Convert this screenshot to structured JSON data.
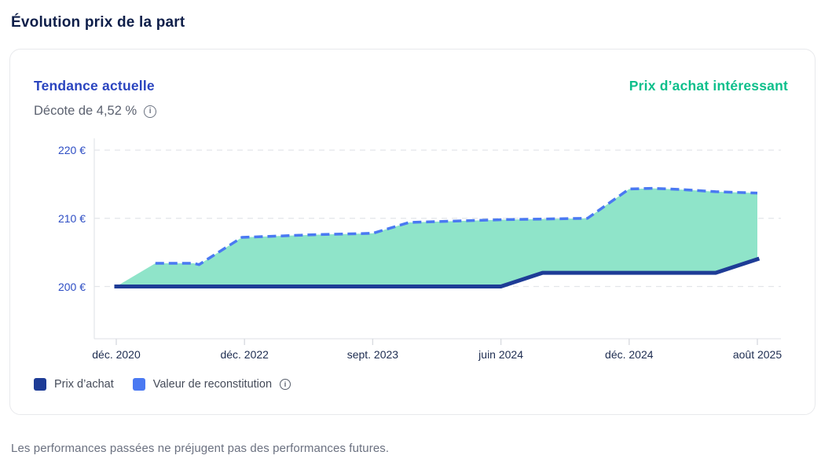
{
  "page": {
    "title": "Évolution prix de la part",
    "disclaimer": "Les performances passées ne préjugent pas des performances futures."
  },
  "card": {
    "title": "Tendance actuelle",
    "status": "Prix d’achat intéressant",
    "subtitle": "Décote de 4,52 %",
    "info_icon": "i",
    "colors": {
      "title": "#2a44bf",
      "status": "#0cbf8b"
    }
  },
  "legend": {
    "items": [
      {
        "label": "Prix d’achat",
        "color": "#1e3c96"
      },
      {
        "label": "Valeur de reconstitution",
        "color": "#4a79f2",
        "info_icon": "i"
      }
    ]
  },
  "chart_data": {
    "type": "area",
    "title": "Évolution prix de la part",
    "unit": "€",
    "grid": true,
    "legend_position": "bottom",
    "ylim": [
      195,
      222
    ],
    "y_axis": {
      "ticks": [
        {
          "label": "200 €",
          "value": 200
        },
        {
          "label": "210 €",
          "value": 210
        },
        {
          "label": "220 €",
          "value": 220
        }
      ]
    },
    "x_axis": {
      "ticks": [
        {
          "label": "déc. 2020",
          "t": 0.0
        },
        {
          "label": "déc. 2022",
          "t": 0.2
        },
        {
          "label": "sept. 2023",
          "t": 0.4
        },
        {
          "label": "juin 2024",
          "t": 0.6
        },
        {
          "label": "déc. 2024",
          "t": 0.8
        },
        {
          "label": "août 2025",
          "t": 1.0
        }
      ]
    },
    "area_fill": "#8fe4c9",
    "series": [
      {
        "name": "Prix d’achat",
        "color": "#1e3c96",
        "style": "solid",
        "width": 5,
        "draw_from_index": 0,
        "points": [
          {
            "t": 0.0,
            "v": 200.0
          },
          {
            "t": 0.6,
            "v": 200.0
          },
          {
            "t": 0.665,
            "v": 202.0
          },
          {
            "t": 0.935,
            "v": 202.0
          },
          {
            "t": 1.0,
            "v": 204.0
          }
        ]
      },
      {
        "name": "Valeur de reconstitution",
        "color": "#4a79f2",
        "style": "dashed",
        "width": 3.5,
        "draw_from_index": 1,
        "points": [
          {
            "t": 0.0,
            "v": 200.0
          },
          {
            "t": 0.061,
            "v": 203.4
          },
          {
            "t": 0.121,
            "v": 203.4
          },
          {
            "t": 0.129,
            "v": 203.2
          },
          {
            "t": 0.196,
            "v": 207.2
          },
          {
            "t": 0.31,
            "v": 207.6
          },
          {
            "t": 0.4,
            "v": 207.8
          },
          {
            "t": 0.457,
            "v": 209.4
          },
          {
            "t": 0.53,
            "v": 209.6
          },
          {
            "t": 0.604,
            "v": 209.8
          },
          {
            "t": 0.735,
            "v": 210.0
          },
          {
            "t": 0.8,
            "v": 214.3
          },
          {
            "t": 0.837,
            "v": 214.4
          },
          {
            "t": 0.886,
            "v": 214.2
          },
          {
            "t": 0.935,
            "v": 213.9
          },
          {
            "t": 1.0,
            "v": 213.7
          }
        ]
      }
    ]
  }
}
